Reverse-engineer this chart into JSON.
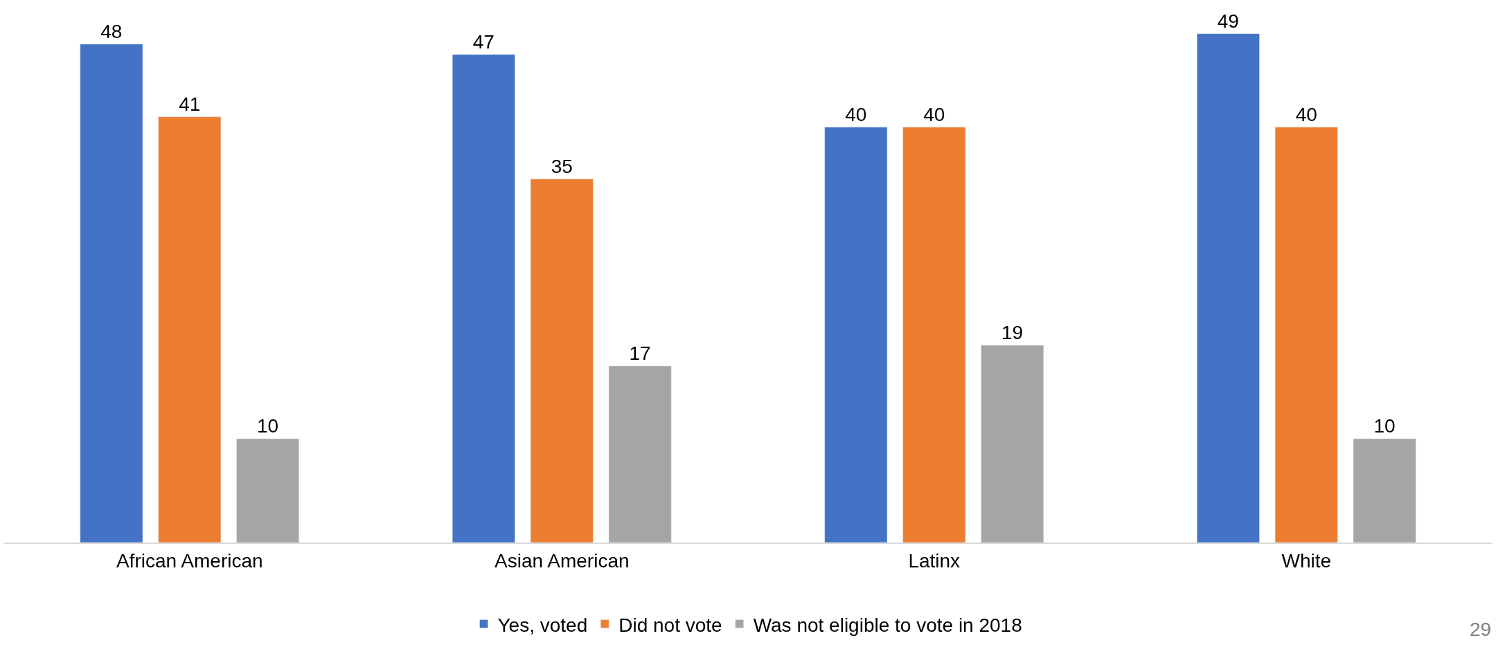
{
  "chart_data": {
    "type": "bar",
    "categories": [
      "African American",
      "Asian American",
      "Latinx",
      "White"
    ],
    "series": [
      {
        "name": "Yes, voted",
        "color": "#4472c4",
        "values": [
          48,
          47,
          40,
          49
        ]
      },
      {
        "name": "Did not vote",
        "color": "#ed7d31",
        "values": [
          41,
          35,
          40,
          40
        ]
      },
      {
        "name": "Was not eligible to vote in 2018",
        "color": "#a5a5a5",
        "values": [
          10,
          17,
          19,
          10
        ]
      }
    ],
    "tick_labels": "x",
    "data_labels": true,
    "legend": "bottom",
    "annotations": [
      "29"
    ]
  }
}
